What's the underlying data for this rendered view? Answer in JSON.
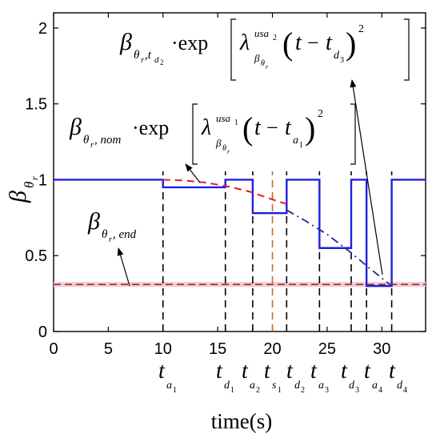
{
  "chart_data": {
    "type": "line",
    "xlabel": "time(s)",
    "ylabel": "β_{θr}",
    "xlim": [
      0,
      34
    ],
    "ylim": [
      0,
      2.1
    ],
    "xticks": [
      "0",
      "5",
      "10",
      "15",
      "20",
      "25",
      "30"
    ],
    "yticks": [
      "0",
      "0.5",
      "1",
      "1.5",
      "2"
    ],
    "grid": false,
    "colors": {
      "step": "#1f1fe0",
      "nominal_curve": "#ee1c1c",
      "decay_curve": "#1a2a8a",
      "end_line": "#8b3010",
      "end_band": "#f7c4d4",
      "markers": "#000000",
      "s1_marker": "#c46a1e"
    },
    "series": [
      {
        "x": [
          0,
          10,
          10,
          15.7,
          15.7,
          18.2,
          18.2,
          21.3,
          21.3,
          24.3,
          24.3,
          27.2,
          27.2,
          28.6,
          28.6,
          30.9,
          30.9,
          34
        ],
        "y": [
          1,
          1,
          0.95,
          0.95,
          1,
          1,
          0.78,
          0.78,
          1,
          1,
          0.55,
          0.55,
          1,
          1,
          0.3,
          0.3,
          1,
          1
        ]
      },
      {
        "x": [
          10,
          12,
          14,
          16,
          18,
          20,
          21.3
        ],
        "y": [
          1,
          0.995,
          0.98,
          0.955,
          0.92,
          0.87,
          0.84
        ]
      },
      {
        "x": [
          21.3,
          23,
          25,
          27,
          29,
          30.9
        ],
        "y": [
          0.8,
          0.73,
          0.64,
          0.53,
          0.41,
          0.3
        ]
      },
      {
        "x": [
          0,
          34
        ],
        "y": [
          0.31,
          0.31
        ]
      }
    ],
    "markers": [
      {
        "x": 10,
        "label": "t_{a1}"
      },
      {
        "x": 15.7,
        "label": "t_{d1}"
      },
      {
        "x": 18.2,
        "label": "t_{a2}"
      },
      {
        "x": 20,
        "label": "t_{s1}"
      },
      {
        "x": 21.3,
        "label": "t_{d2}"
      },
      {
        "x": 24.3,
        "label": "t_{a3}"
      },
      {
        "x": 27.2,
        "label": "t_{d3}"
      },
      {
        "x": 28.6,
        "label": "t_{a4}"
      },
      {
        "x": 30.9,
        "label": "t_{d4}"
      }
    ],
    "annotations": [
      "β_{θr,td2} · exp[λ^{usa2}_{βθr} (t − t_{d3})^2]",
      "β_{θr,nom} · exp[λ^{usa1}_{βθr} (t − t_{a1})^2]",
      "β_{θr,end}"
    ]
  }
}
